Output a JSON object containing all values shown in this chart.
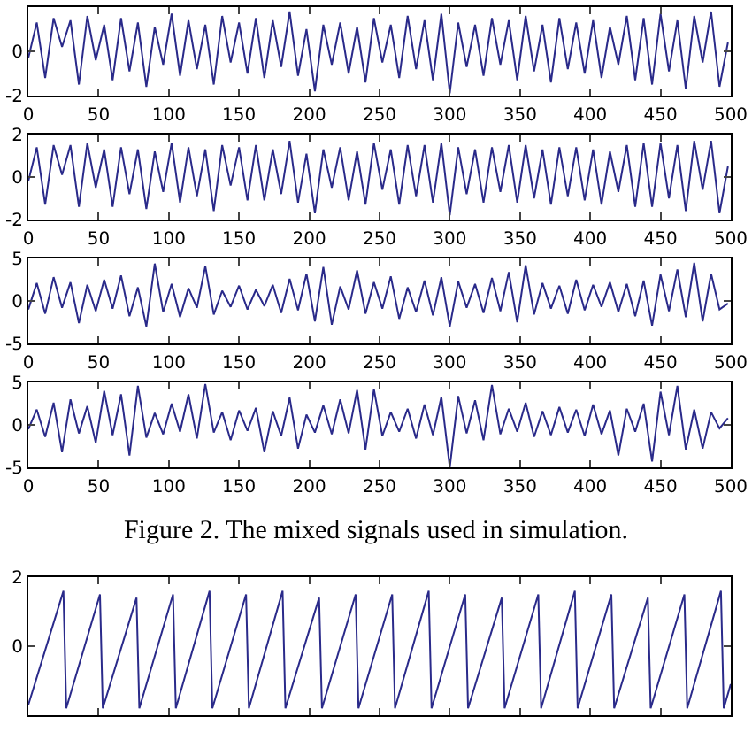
{
  "chart_data": [
    {
      "type": "line",
      "x": [
        0,
        6,
        12,
        18,
        24,
        30,
        36,
        42,
        48,
        54,
        60,
        66,
        72,
        78,
        84,
        90,
        96,
        102,
        108,
        114,
        120,
        126,
        132,
        138,
        144,
        150,
        156,
        162,
        168,
        174,
        180,
        186,
        192,
        198,
        204,
        210,
        216,
        222,
        228,
        234,
        240,
        246,
        252,
        258,
        264,
        270,
        276,
        282,
        288,
        294,
        300,
        306,
        312,
        318,
        324,
        330,
        336,
        342,
        348,
        354,
        360,
        366,
        372,
        378,
        384,
        390,
        396,
        402,
        408,
        414,
        420,
        426,
        432,
        438,
        444,
        450,
        456,
        462,
        468,
        474,
        480,
        486,
        492,
        498
      ],
      "series": [
        {
          "color": "#2a2a8a",
          "values": [
            -0.3,
            1.3,
            -1.2,
            1.5,
            0.2,
            1.4,
            -1.5,
            1.6,
            -0.4,
            1.2,
            -1.3,
            1.5,
            -0.9,
            1.3,
            -1.6,
            1.1,
            -0.6,
            1.7,
            -1.1,
            1.4,
            -0.8,
            1.2,
            -1.5,
            1.6,
            -0.5,
            1.3,
            -1.0,
            1.5,
            -1.2,
            1.4,
            -0.7,
            1.8,
            -1.1,
            1.0,
            -1.8,
            1.2,
            -0.6,
            1.3,
            -1.0,
            1.1,
            -1.4,
            1.5,
            -0.5,
            1.2,
            -1.2,
            1.6,
            -0.8,
            1.4,
            -1.3,
            1.7,
            -1.9,
            1.3,
            -0.7,
            1.2,
            -1.1,
            1.5,
            -0.6,
            1.4,
            -1.3,
            1.6,
            -0.9,
            1.2,
            -1.4,
            1.5,
            -0.8,
            1.3,
            -1.0,
            1.4,
            -1.2,
            1.1,
            -0.6,
            1.6,
            -1.3,
            1.5,
            -1.5,
            1.7,
            -0.9,
            1.4,
            -1.7,
            1.6,
            -0.5,
            1.8,
            -1.6,
            0.4
          ]
        }
      ],
      "xlim": [
        0,
        500
      ],
      "ylim": [
        -2,
        2
      ],
      "xticks": [
        0,
        50,
        100,
        150,
        200,
        250,
        300,
        350,
        400,
        450,
        500
      ],
      "yticks": [
        {
          "value": 2,
          "label": null
        },
        0,
        -2
      ]
    },
    {
      "type": "line",
      "x": [
        0,
        6,
        12,
        18,
        24,
        30,
        36,
        42,
        48,
        54,
        60,
        66,
        72,
        78,
        84,
        90,
        96,
        102,
        108,
        114,
        120,
        126,
        132,
        138,
        144,
        150,
        156,
        162,
        168,
        174,
        180,
        186,
        192,
        198,
        204,
        210,
        216,
        222,
        228,
        234,
        240,
        246,
        252,
        258,
        264,
        270,
        276,
        282,
        288,
        294,
        300,
        306,
        312,
        318,
        324,
        330,
        336,
        342,
        348,
        354,
        360,
        366,
        372,
        378,
        384,
        390,
        396,
        402,
        408,
        414,
        420,
        426,
        432,
        438,
        444,
        450,
        456,
        462,
        468,
        474,
        480,
        486,
        492,
        498
      ],
      "series": [
        {
          "color": "#2a2a8a",
          "values": [
            -0.2,
            1.4,
            -1.3,
            1.5,
            0.1,
            1.5,
            -1.4,
            1.6,
            -0.5,
            1.3,
            -1.4,
            1.4,
            -0.8,
            1.3,
            -1.5,
            1.2,
            -0.7,
            1.6,
            -1.2,
            1.4,
            -0.9,
            1.3,
            -1.6,
            1.5,
            -0.4,
            1.4,
            -1.1,
            1.5,
            -1.1,
            1.3,
            -0.8,
            1.7,
            -1.2,
            1.1,
            -1.7,
            1.3,
            -0.5,
            1.4,
            -1.1,
            1.2,
            -1.3,
            1.6,
            -0.6,
            1.3,
            -1.3,
            1.5,
            -0.9,
            1.5,
            -1.2,
            1.6,
            -1.8,
            1.4,
            -0.8,
            1.3,
            -1.2,
            1.4,
            -0.7,
            1.5,
            -1.2,
            1.5,
            -1.0,
            1.3,
            -1.3,
            1.4,
            -0.9,
            1.4,
            -1.1,
            1.3,
            -1.3,
            1.2,
            -0.7,
            1.5,
            -1.4,
            1.6,
            -1.4,
            1.6,
            -1.0,
            1.5,
            -1.6,
            1.7,
            -0.6,
            1.7,
            -1.7,
            0.5
          ]
        }
      ],
      "xlim": [
        0,
        500
      ],
      "ylim": [
        -2,
        2
      ],
      "xticks": [
        0,
        50,
        100,
        150,
        200,
        250,
        300,
        350,
        400,
        450,
        500
      ],
      "yticks": [
        2,
        0,
        -2
      ]
    },
    {
      "type": "line",
      "x": [
        0,
        6,
        12,
        18,
        24,
        30,
        36,
        42,
        48,
        54,
        60,
        66,
        72,
        78,
        84,
        90,
        96,
        102,
        108,
        114,
        120,
        126,
        132,
        138,
        144,
        150,
        156,
        162,
        168,
        174,
        180,
        186,
        192,
        198,
        204,
        210,
        216,
        222,
        228,
        234,
        240,
        246,
        252,
        258,
        264,
        270,
        276,
        282,
        288,
        294,
        300,
        306,
        312,
        318,
        324,
        330,
        336,
        342,
        348,
        354,
        360,
        366,
        372,
        378,
        384,
        390,
        396,
        402,
        408,
        414,
        420,
        426,
        432,
        438,
        444,
        450,
        456,
        462,
        468,
        474,
        480,
        486,
        492,
        498
      ],
      "series": [
        {
          "color": "#2a2a8a",
          "values": [
            -1.0,
            2.1,
            -1.5,
            2.8,
            -0.8,
            2.2,
            -2.6,
            1.9,
            -1.2,
            2.5,
            -0.9,
            3.0,
            -1.8,
            1.6,
            -3.0,
            4.4,
            -1.3,
            2.0,
            -1.9,
            1.5,
            -0.8,
            4.1,
            -1.6,
            1.2,
            -0.7,
            1.8,
            -1.0,
            1.3,
            -0.6,
            1.9,
            -1.4,
            2.6,
            -1.1,
            3.2,
            -2.4,
            4.0,
            -2.8,
            1.7,
            -1.0,
            3.6,
            -1.5,
            2.2,
            -0.9,
            2.9,
            -2.1,
            1.6,
            -1.3,
            2.4,
            -1.7,
            2.8,
            -3.0,
            2.3,
            -0.8,
            2.0,
            -1.4,
            2.7,
            -1.2,
            3.4,
            -2.5,
            4.2,
            -1.6,
            2.1,
            -0.9,
            1.8,
            -1.5,
            2.5,
            -1.1,
            1.9,
            -0.7,
            2.2,
            -1.3,
            2.0,
            -1.8,
            2.4,
            -2.9,
            3.1,
            -1.2,
            3.7,
            -1.9,
            4.5,
            -2.4,
            3.2,
            -1.0,
            -0.3
          ]
        }
      ],
      "xlim": [
        0,
        500
      ],
      "ylim": [
        -5,
        5
      ],
      "xticks": [
        0,
        50,
        100,
        150,
        200,
        250,
        300,
        350,
        400,
        450,
        500
      ],
      "yticks": [
        5,
        0,
        -5
      ]
    },
    {
      "type": "line",
      "x": [
        0,
        6,
        12,
        18,
        24,
        30,
        36,
        42,
        48,
        54,
        60,
        66,
        72,
        78,
        84,
        90,
        96,
        102,
        108,
        114,
        120,
        126,
        132,
        138,
        144,
        150,
        156,
        162,
        168,
        174,
        180,
        186,
        192,
        198,
        204,
        210,
        216,
        222,
        228,
        234,
        240,
        246,
        252,
        258,
        264,
        270,
        276,
        282,
        288,
        294,
        300,
        306,
        312,
        318,
        324,
        330,
        336,
        342,
        348,
        354,
        360,
        366,
        372,
        378,
        384,
        390,
        396,
        402,
        408,
        414,
        420,
        426,
        432,
        438,
        444,
        450,
        456,
        462,
        468,
        474,
        480,
        486,
        492,
        498
      ],
      "series": [
        {
          "color": "#2a2a8a",
          "values": [
            -0.5,
            1.8,
            -1.4,
            2.6,
            -3.2,
            3.0,
            -1.0,
            2.2,
            -2.1,
            4.0,
            -1.2,
            3.6,
            -3.6,
            4.6,
            -1.5,
            1.4,
            -1.1,
            2.5,
            -0.8,
            3.6,
            -1.6,
            4.8,
            -0.9,
            1.5,
            -1.8,
            1.7,
            -0.7,
            2.0,
            -3.2,
            1.6,
            -1.3,
            3.2,
            -2.8,
            1.2,
            -0.9,
            2.3,
            -1.1,
            3.0,
            -1.0,
            4.1,
            -2.9,
            4.2,
            -1.3,
            1.5,
            -0.8,
            1.9,
            -1.6,
            2.4,
            -1.2,
            3.3,
            -5.0,
            3.4,
            -1.0,
            2.9,
            -1.8,
            4.7,
            -1.1,
            1.9,
            -0.8,
            2.6,
            -1.4,
            1.6,
            -1.2,
            2.1,
            -0.9,
            1.8,
            -1.3,
            2.4,
            -1.1,
            1.7,
            -3.6,
            1.9,
            -0.8,
            2.5,
            -4.3,
            3.9,
            -1.2,
            4.6,
            -2.9,
            1.8,
            -2.8,
            1.5,
            -0.4,
            0.8
          ]
        }
      ],
      "xlim": [
        0,
        500
      ],
      "ylim": [
        -5,
        5
      ],
      "xticks": [
        0,
        50,
        100,
        150,
        200,
        250,
        300,
        350,
        400,
        450,
        500
      ],
      "yticks": [
        5,
        0,
        -5
      ],
      "annotations": [
        "Figure 2. The mixed signals used in simulation."
      ]
    },
    {
      "type": "line",
      "x": [
        0,
        25,
        27,
        51,
        53,
        77,
        79,
        103,
        105,
        129,
        131,
        155,
        157,
        181,
        183,
        207,
        209,
        233,
        235,
        259,
        261,
        285,
        287,
        311,
        313,
        337,
        339,
        363,
        365,
        389,
        391,
        415,
        417,
        441,
        443,
        467,
        469,
        493,
        495,
        500
      ],
      "series": [
        {
          "color": "#2a2a8a",
          "values": [
            -1.7,
            1.6,
            -1.8,
            1.5,
            -1.8,
            1.4,
            -1.8,
            1.5,
            -1.8,
            1.6,
            -1.8,
            1.5,
            -1.8,
            1.6,
            -1.8,
            1.4,
            -1.8,
            1.5,
            -1.8,
            1.5,
            -1.8,
            1.6,
            -1.8,
            1.5,
            -1.8,
            1.4,
            -1.8,
            1.5,
            -1.8,
            1.6,
            -1.8,
            1.5,
            -1.8,
            1.4,
            -1.8,
            1.5,
            -1.8,
            1.6,
            -1.8,
            -1.1
          ]
        }
      ],
      "xlim": [
        0,
        500
      ],
      "ylim": [
        -2,
        2
      ],
      "xticks": [
        0,
        50,
        100,
        150,
        200,
        250,
        300,
        350,
        400,
        450,
        500
      ],
      "yticks": [
        2,
        0,
        {
          "value": -2,
          "label": null
        }
      ],
      "tick_labels": "y"
    }
  ]
}
